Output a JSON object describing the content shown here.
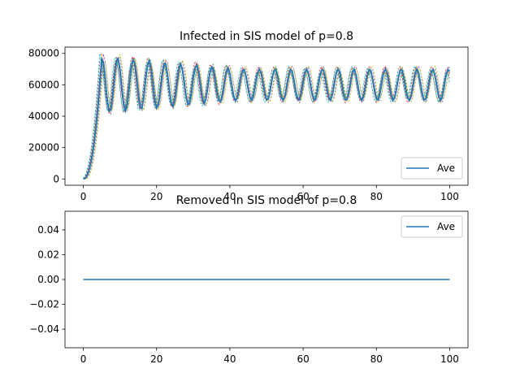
{
  "chart_data": [
    {
      "type": "line",
      "title": "Infected in SIS model of p=0.8",
      "xlabel": "",
      "ylabel": "",
      "xlim": [
        -5,
        105
      ],
      "ylim": [
        -4000,
        84000
      ],
      "xticks": [
        0,
        20,
        40,
        60,
        80,
        100
      ],
      "xtick_labels": [
        "0",
        "20",
        "40",
        "60",
        "80",
        "100"
      ],
      "yticks": [
        0,
        20000,
        40000,
        60000,
        80000
      ],
      "ytick_labels": [
        "0",
        "20000",
        "40000",
        "60000",
        "80000"
      ],
      "legend": {
        "position": "lower-right",
        "entries": [
          "Ave"
        ]
      },
      "grid": false,
      "runs": {
        "count": 8,
        "style": "dashed",
        "colors": [
          "#ff7f0e",
          "#2ca02c",
          "#d62728",
          "#9467bd",
          "#8c564b",
          "#e377c2",
          "#bcbd22",
          "#17becf"
        ],
        "phase_offsets": [
          0.0,
          0.25,
          -0.2,
          0.45,
          -0.35,
          0.15,
          0.6,
          -0.5
        ]
      },
      "series": [
        {
          "name": "Ave",
          "color": "#1f77b4",
          "x_start": 0,
          "x_end": 100,
          "x_step": 0.5,
          "growth_start": 0,
          "growth_end": 5,
          "mean_start": 60000,
          "mean_end": 60000,
          "amplitude_start": 18000,
          "amplitude_end": 10000,
          "period": 4.3,
          "peak": 78000,
          "trough_min": 35000
        }
      ]
    },
    {
      "type": "line",
      "title": "Removed in SIS model of p=0.8",
      "xlabel": "",
      "ylabel": "",
      "xlim": [
        -5,
        105
      ],
      "ylim": [
        -0.055,
        0.055
      ],
      "xticks": [
        0,
        20,
        40,
        60,
        80,
        100
      ],
      "xtick_labels": [
        "0",
        "20",
        "40",
        "60",
        "80",
        "100"
      ],
      "yticks": [
        -0.04,
        -0.02,
        0.0,
        0.02,
        0.04
      ],
      "ytick_labels": [
        "−0.04",
        "−0.02",
        "0.00",
        "0.02",
        "0.04"
      ],
      "legend": {
        "position": "upper-right",
        "entries": [
          "Ave"
        ]
      },
      "grid": false,
      "series": [
        {
          "name": "Ave",
          "color": "#1f77b4",
          "x": [
            0,
            100
          ],
          "y": [
            0,
            0
          ]
        }
      ]
    }
  ]
}
